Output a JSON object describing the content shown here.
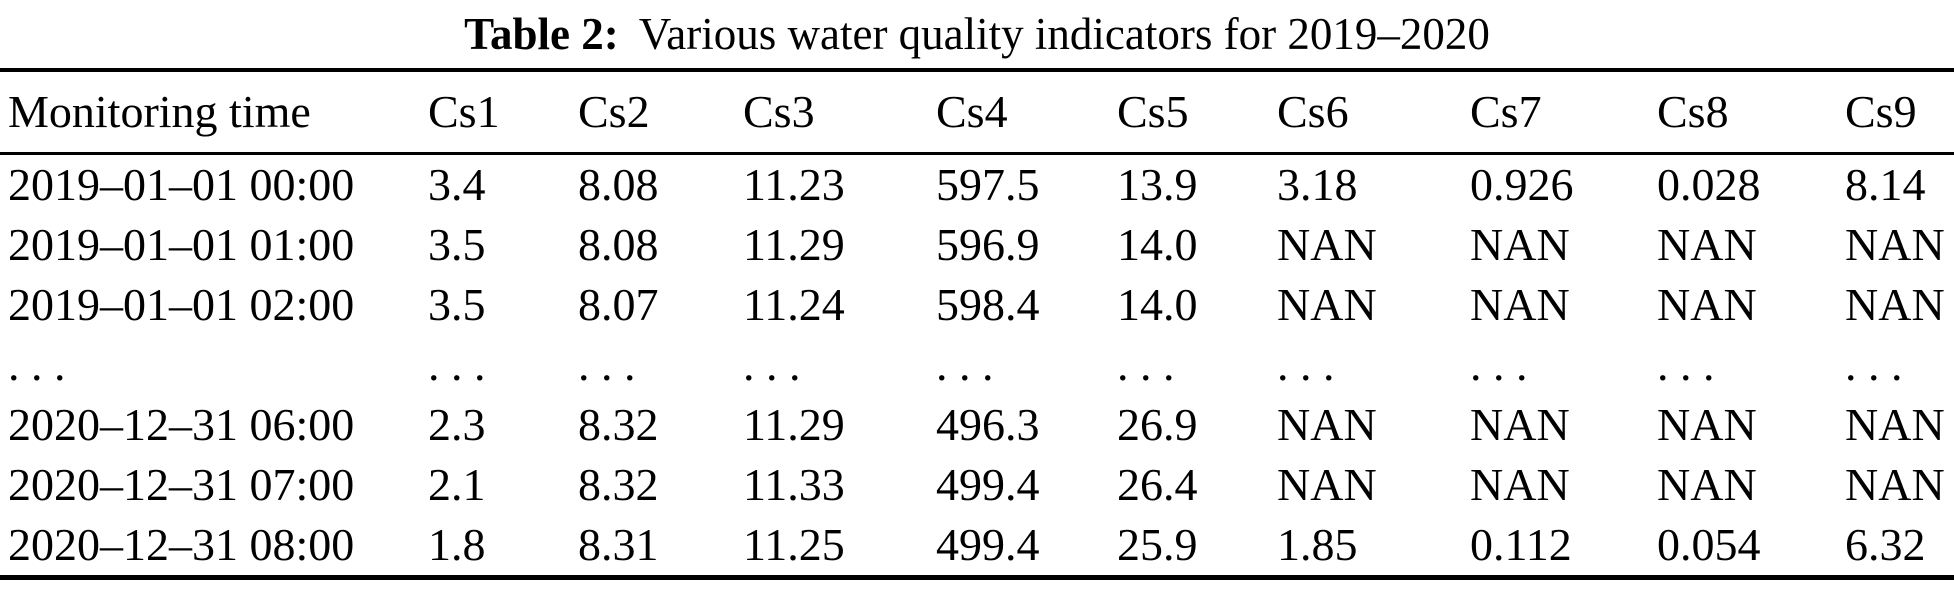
{
  "caption": {
    "label": "Table 2:",
    "text": "Various water quality indicators for 2019–2020"
  },
  "table": {
    "columns": [
      "Monitoring time",
      "Cs1",
      "Cs2",
      "Cs3",
      "Cs4",
      "Cs5",
      "Cs6",
      "Cs7",
      "Cs8",
      "Cs9"
    ],
    "rows": [
      [
        "2019–01–01 00:00",
        "3.4",
        "8.08",
        "11.23",
        "597.5",
        "13.9",
        "3.18",
        "0.926",
        "0.028",
        "8.14"
      ],
      [
        "2019–01–01 01:00",
        "3.5",
        "8.08",
        "11.29",
        "596.9",
        "14.0",
        "NAN",
        "NAN",
        "NAN",
        "NAN"
      ],
      [
        "2019–01–01 02:00",
        "3.5",
        "8.07",
        "11.24",
        "598.4",
        "14.0",
        "NAN",
        "NAN",
        "NAN",
        "NAN"
      ],
      [
        ". . .",
        ". . .",
        ". . .",
        ". . .",
        ". . .",
        ". . .",
        ". . .",
        ". . .",
        ". . .",
        ". . ."
      ],
      [
        "2020–12–31 06:00",
        "2.3",
        "8.32",
        "11.29",
        "496.3",
        "26.9",
        "NAN",
        "NAN",
        "NAN",
        "NAN"
      ],
      [
        "2020–12–31 07:00",
        "2.1",
        "8.32",
        "11.33",
        "499.4",
        "26.4",
        "NAN",
        "NAN",
        "NAN",
        "NAN"
      ],
      [
        "2020–12–31 08:00",
        "1.8",
        "8.31",
        "11.25",
        "499.4",
        "25.9",
        "1.85",
        "0.112",
        "0.054",
        "6.32"
      ]
    ]
  },
  "colors": {
    "text": "#000000",
    "background": "#ffffff",
    "rule": "#000000"
  }
}
